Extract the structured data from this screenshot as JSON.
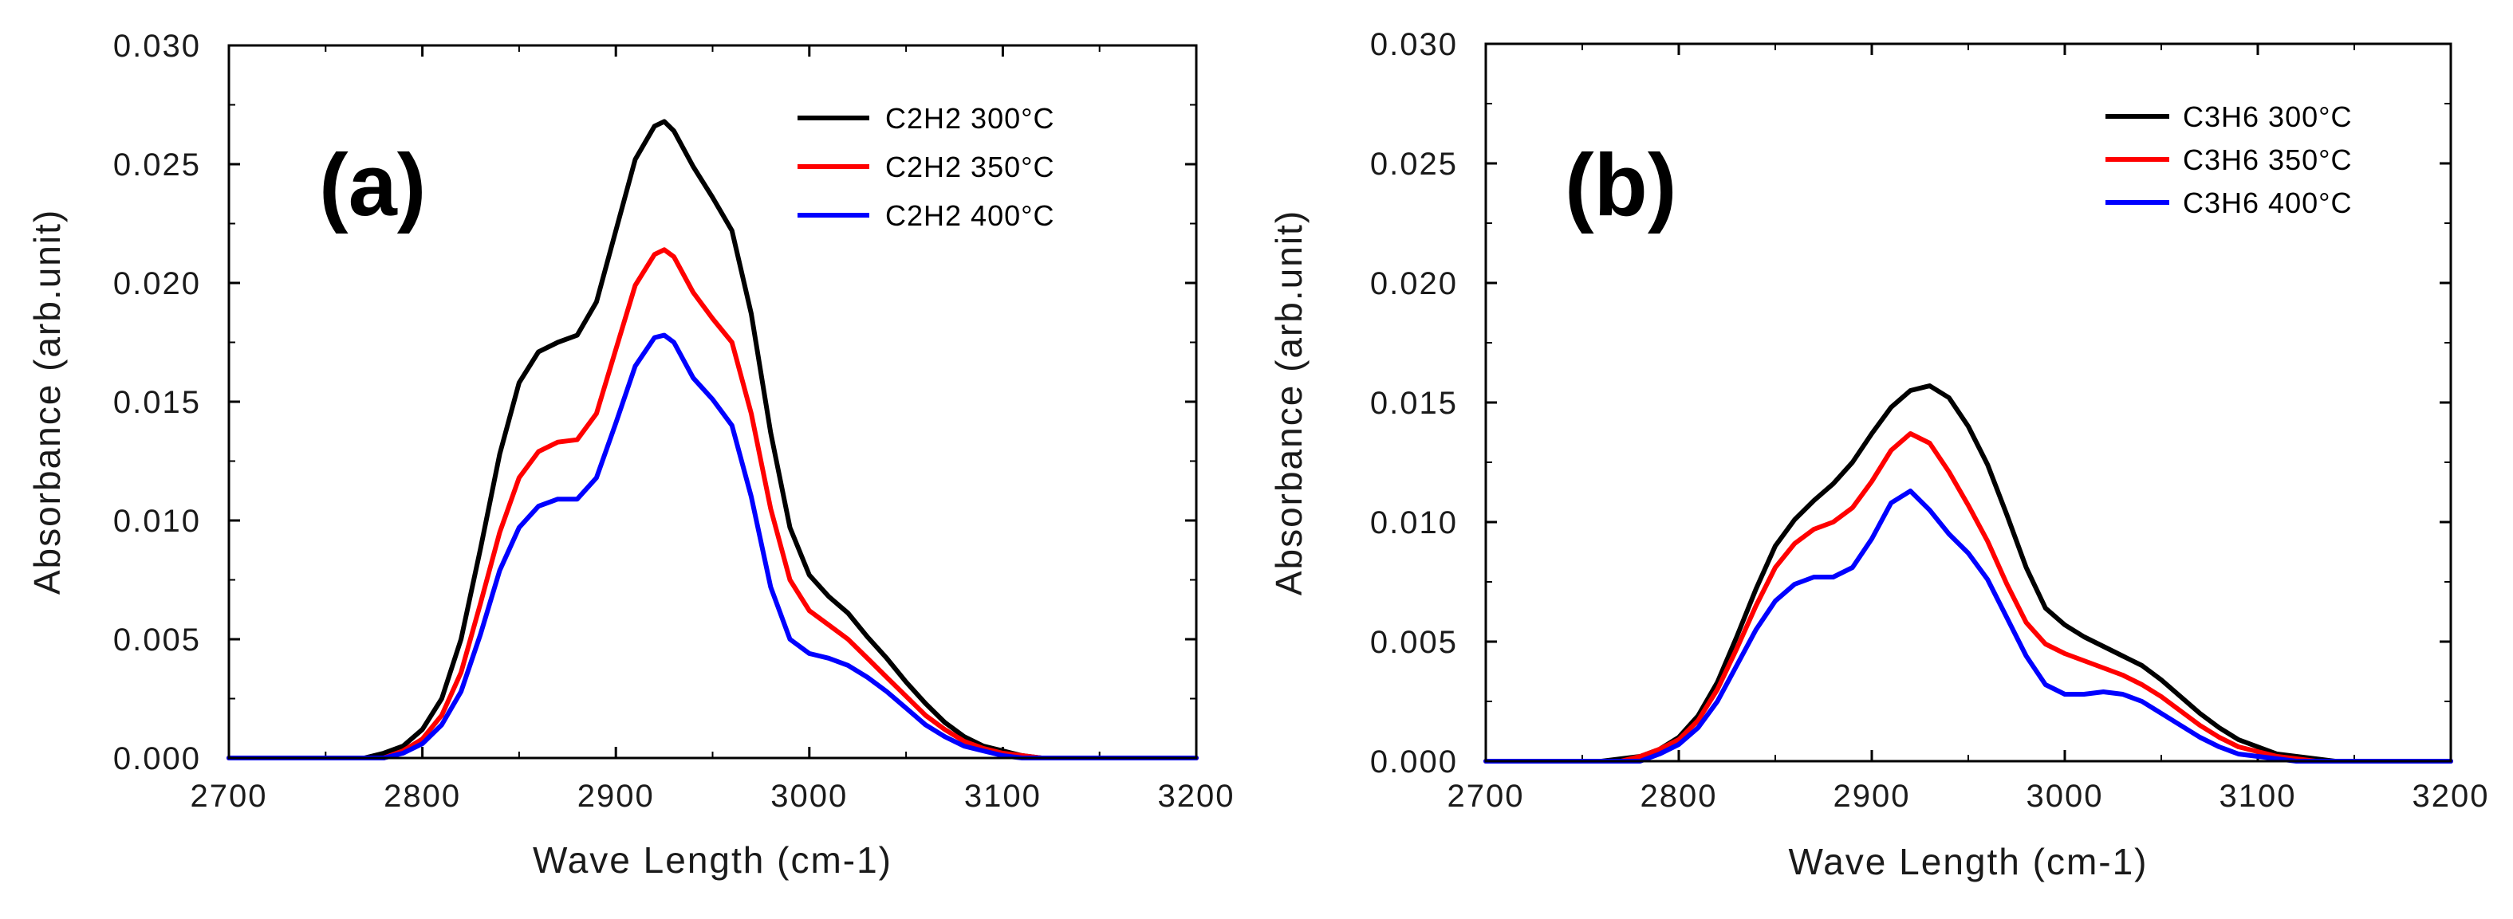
{
  "chart_data": [
    {
      "type": "line",
      "panel_label": "(a)",
      "xlabel": "Wave Length (cm-1)",
      "ylabel": "Absorbance (arb.unit)",
      "xlim": [
        2700,
        3200
      ],
      "ylim": [
        0,
        0.03
      ],
      "xticks": [
        "2700",
        "2800",
        "2900",
        "3000",
        "3100",
        "3200"
      ],
      "yticks": [
        "0.000",
        "0.005",
        "0.010",
        "0.015",
        "0.020",
        "0.025",
        "0.030"
      ],
      "legend_position": "top-right",
      "series": [
        {
          "name": "C2H2 300°C",
          "color": "#000000",
          "x": [
            2700,
            2770,
            2780,
            2790,
            2800,
            2810,
            2820,
            2830,
            2840,
            2850,
            2860,
            2870,
            2880,
            2890,
            2900,
            2910,
            2920,
            2925,
            2930,
            2940,
            2950,
            2960,
            2970,
            2980,
            2990,
            3000,
            3010,
            3020,
            3030,
            3040,
            3050,
            3060,
            3070,
            3080,
            3090,
            3100,
            3110,
            3120,
            3130,
            3140,
            3200
          ],
          "y": [
            0,
            0,
            0.0002,
            0.0005,
            0.0012,
            0.0025,
            0.005,
            0.0088,
            0.0128,
            0.0158,
            0.0171,
            0.0175,
            0.0178,
            0.0192,
            0.0222,
            0.0252,
            0.0266,
            0.0268,
            0.0264,
            0.0249,
            0.0236,
            0.0222,
            0.0187,
            0.0137,
            0.0097,
            0.0077,
            0.0068,
            0.0061,
            0.0051,
            0.0042,
            0.0032,
            0.0023,
            0.0015,
            0.0009,
            0.0005,
            0.0003,
            0.0001,
            0,
            0,
            0,
            0
          ]
        },
        {
          "name": "C2H2 350°C",
          "color": "#ff0000",
          "x": [
            2700,
            2780,
            2790,
            2800,
            2810,
            2820,
            2830,
            2840,
            2850,
            2860,
            2870,
            2880,
            2890,
            2900,
            2910,
            2920,
            2925,
            2930,
            2940,
            2950,
            2960,
            2970,
            2980,
            2990,
            3000,
            3010,
            3020,
            3030,
            3040,
            3050,
            3060,
            3070,
            3080,
            3090,
            3100,
            3110,
            3120,
            3130,
            3140,
            3200
          ],
          "y": [
            0,
            0,
            0.0003,
            0.0008,
            0.0018,
            0.0036,
            0.0065,
            0.0095,
            0.0118,
            0.0129,
            0.0133,
            0.0134,
            0.0145,
            0.0172,
            0.0199,
            0.0212,
            0.0214,
            0.0211,
            0.0196,
            0.0185,
            0.0175,
            0.0145,
            0.0105,
            0.0075,
            0.0062,
            0.0056,
            0.005,
            0.0042,
            0.0034,
            0.0026,
            0.0018,
            0.0012,
            0.0007,
            0.0004,
            0.0002,
            0.0001,
            0,
            0,
            0,
            0
          ]
        },
        {
          "name": "C2H2 400°C",
          "color": "#0000ff",
          "x": [
            2700,
            2780,
            2790,
            2800,
            2810,
            2820,
            2830,
            2840,
            2850,
            2860,
            2870,
            2880,
            2890,
            2900,
            2910,
            2920,
            2925,
            2930,
            2940,
            2950,
            2960,
            2970,
            2980,
            2990,
            3000,
            3010,
            3020,
            3030,
            3040,
            3050,
            3060,
            3070,
            3080,
            3090,
            3100,
            3110,
            3120,
            3130,
            3200
          ],
          "y": [
            0,
            0,
            0.0002,
            0.0006,
            0.0014,
            0.0028,
            0.0052,
            0.0079,
            0.0097,
            0.0106,
            0.0109,
            0.0109,
            0.0118,
            0.0141,
            0.0165,
            0.0177,
            0.0178,
            0.0175,
            0.016,
            0.0151,
            0.014,
            0.011,
            0.0072,
            0.005,
            0.0044,
            0.0042,
            0.0039,
            0.0034,
            0.0028,
            0.0021,
            0.0014,
            0.0009,
            0.0005,
            0.0003,
            0.0001,
            0,
            0,
            0,
            0
          ]
        }
      ]
    },
    {
      "type": "line",
      "panel_label": "(b)",
      "xlabel": "Wave Length (cm-1)",
      "ylabel": "Absorbance (arb.unit)",
      "xlim": [
        2700,
        3200
      ],
      "ylim": [
        0,
        0.03
      ],
      "xticks": [
        "2700",
        "2800",
        "2900",
        "3000",
        "3100",
        "3200"
      ],
      "yticks": [
        "0.000",
        "0.005",
        "0.010",
        "0.015",
        "0.020",
        "0.025",
        "0.030"
      ],
      "legend_position": "top-right",
      "series": [
        {
          "name": "C3H6 300°C",
          "color": "#000000",
          "x": [
            2700,
            2760,
            2770,
            2780,
            2790,
            2800,
            2810,
            2820,
            2830,
            2840,
            2850,
            2860,
            2870,
            2880,
            2890,
            2900,
            2910,
            2920,
            2930,
            2940,
            2950,
            2960,
            2970,
            2980,
            2990,
            3000,
            3010,
            3020,
            3030,
            3040,
            3050,
            3060,
            3070,
            3080,
            3090,
            3100,
            3110,
            3120,
            3130,
            3140,
            3150,
            3200
          ],
          "y": [
            0,
            0,
            0.0001,
            0.0002,
            0.0005,
            0.001,
            0.0019,
            0.0033,
            0.0052,
            0.0072,
            0.009,
            0.0101,
            0.0109,
            0.0116,
            0.0125,
            0.0137,
            0.0148,
            0.0155,
            0.0157,
            0.0152,
            0.014,
            0.0124,
            0.0103,
            0.0081,
            0.0064,
            0.0057,
            0.0052,
            0.0048,
            0.0044,
            0.004,
            0.0034,
            0.0027,
            0.002,
            0.0014,
            0.0009,
            0.0006,
            0.0003,
            0.0002,
            0.0001,
            0,
            0,
            0
          ]
        },
        {
          "name": "C3H6 350°C",
          "color": "#ff0000",
          "x": [
            2700,
            2770,
            2780,
            2790,
            2800,
            2810,
            2820,
            2830,
            2840,
            2850,
            2860,
            2870,
            2880,
            2890,
            2900,
            2910,
            2920,
            2930,
            2940,
            2950,
            2960,
            2970,
            2980,
            2990,
            3000,
            3010,
            3020,
            3030,
            3040,
            3050,
            3060,
            3070,
            3080,
            3090,
            3100,
            3110,
            3120,
            3130,
            3140,
            3200
          ],
          "y": [
            0,
            0,
            0.0002,
            0.0005,
            0.0009,
            0.0017,
            0.003,
            0.0047,
            0.0065,
            0.0081,
            0.0091,
            0.0097,
            0.01,
            0.0106,
            0.0117,
            0.013,
            0.0137,
            0.0133,
            0.0121,
            0.0107,
            0.0092,
            0.0074,
            0.0058,
            0.0049,
            0.0045,
            0.0042,
            0.0039,
            0.0036,
            0.0032,
            0.0027,
            0.0021,
            0.0015,
            0.001,
            0.0006,
            0.0004,
            0.0002,
            0.0001,
            0,
            0,
            0
          ]
        },
        {
          "name": "C3H6 400°C",
          "color": "#0000ff",
          "x": [
            2700,
            2780,
            2790,
            2800,
            2810,
            2820,
            2830,
            2840,
            2850,
            2860,
            2870,
            2880,
            2890,
            2900,
            2910,
            2920,
            2930,
            2940,
            2950,
            2960,
            2970,
            2980,
            2990,
            3000,
            3010,
            3020,
            3030,
            3040,
            3050,
            3060,
            3070,
            3080,
            3090,
            3100,
            3110,
            3120,
            3130,
            3200
          ],
          "y": [
            0,
            0,
            0.0003,
            0.0007,
            0.0014,
            0.0025,
            0.004,
            0.0055,
            0.0067,
            0.0074,
            0.0077,
            0.0077,
            0.0081,
            0.0093,
            0.0108,
            0.0113,
            0.0105,
            0.0095,
            0.0087,
            0.0076,
            0.006,
            0.0044,
            0.0032,
            0.0028,
            0.0028,
            0.0029,
            0.0028,
            0.0025,
            0.002,
            0.0015,
            0.001,
            0.0006,
            0.0003,
            0.0002,
            0.0001,
            0,
            0,
            0
          ]
        }
      ]
    }
  ]
}
